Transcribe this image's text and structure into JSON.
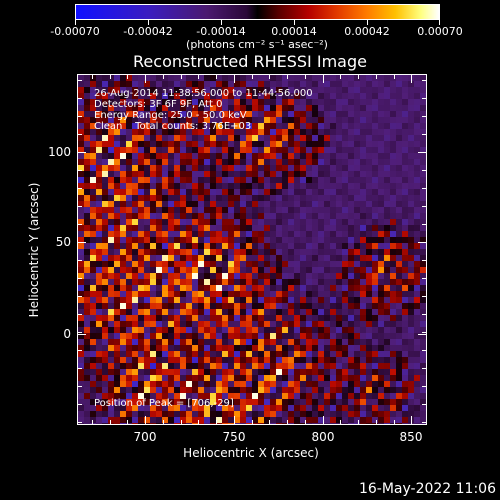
{
  "colorbar": {
    "tick_labels": [
      "-0.00070",
      "-0.00042",
      "-0.00014",
      "0.00014",
      "0.00042",
      "0.00070"
    ],
    "units": "(photons cm⁻² s⁻¹ asec⁻²)",
    "colors": {
      "min": "#1010ff",
      "zero": "#000000",
      "max": "#ffffff"
    }
  },
  "title": "Reconstructed RHESSI Image",
  "info": {
    "line1": "26-Aug-2014 11:38:56.000 to 11:44:56.000",
    "line2": "Detectors: 3F 6F 9F, Att 0",
    "line3": "Energy Range: 25.0 - 50.0 keV",
    "line4": "Clean    Total counts: 3.76E+03"
  },
  "peak_label": "Position of Peak = [706,-29]",
  "axes": {
    "xlabel": "Heliocentric X (arcsec)",
    "ylabel": "Heliocentric Y (arcsec)",
    "x_ticks": [
      "700",
      "750",
      "800",
      "850"
    ],
    "y_ticks": [
      "100",
      "50",
      "0"
    ]
  },
  "footer_date": "16-May-2022 11:06"
}
